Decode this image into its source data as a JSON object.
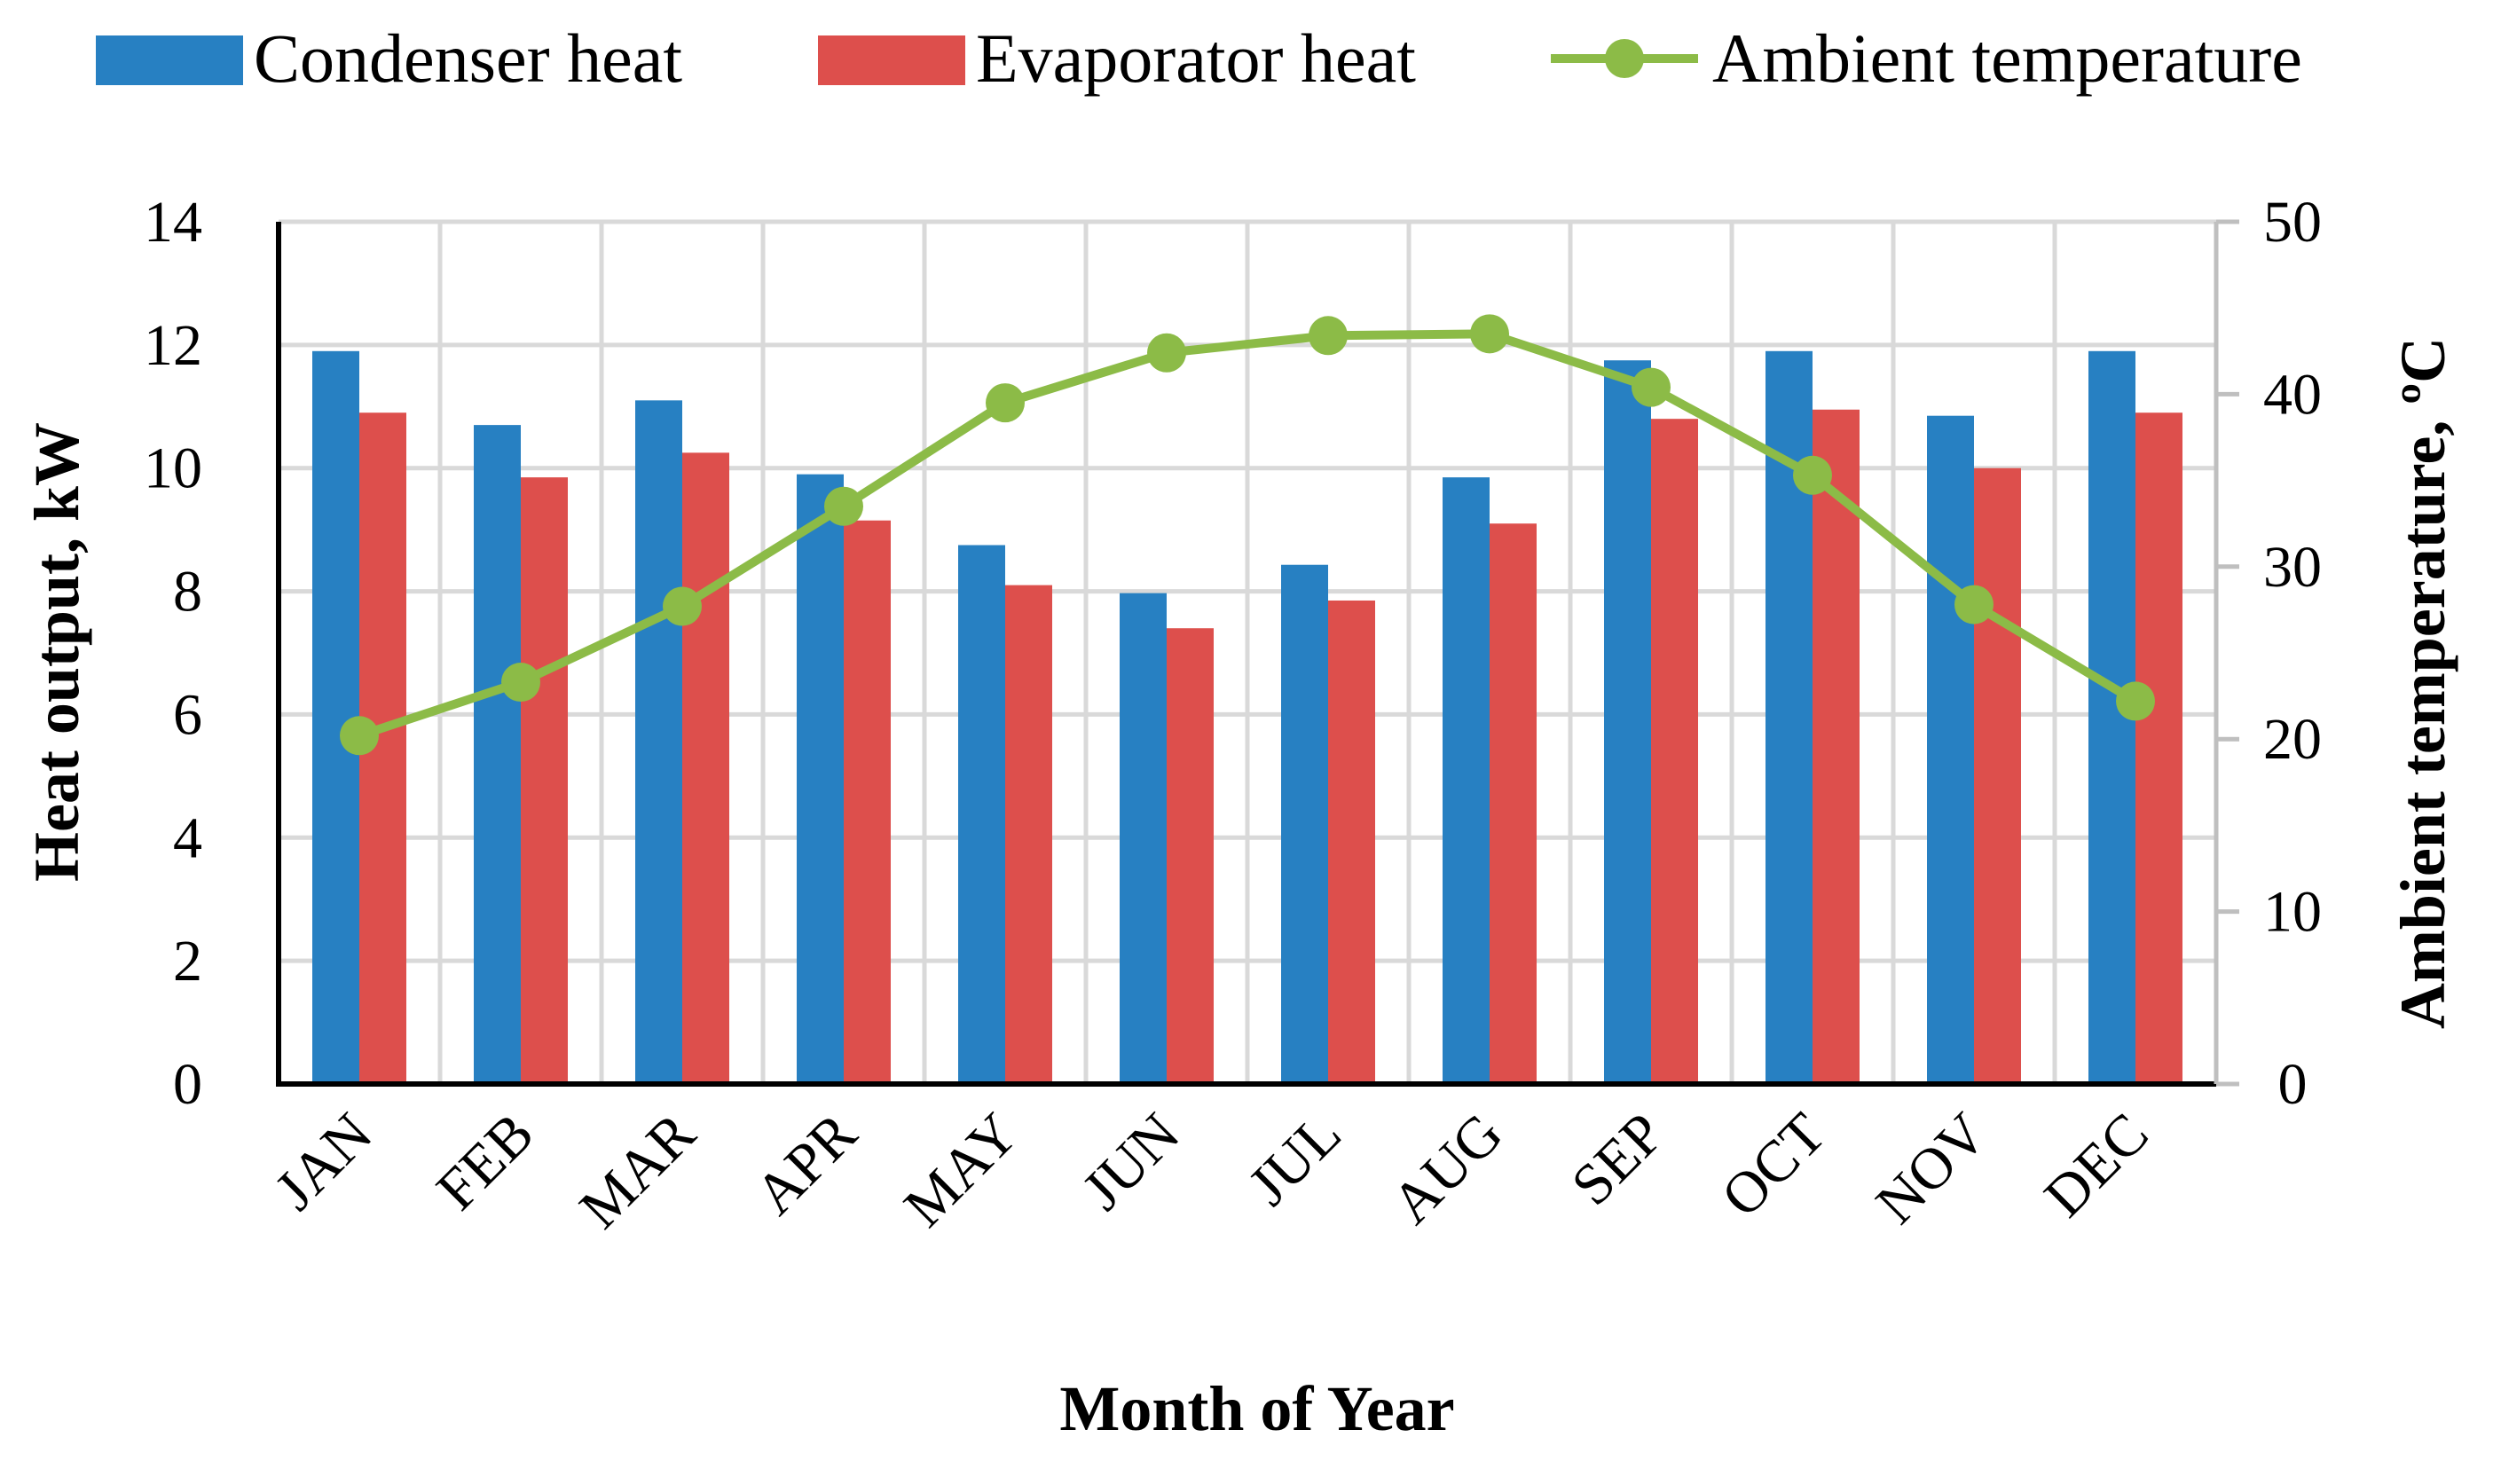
{
  "chart_data": {
    "type": "bar",
    "title": "",
    "xlabel": "Month of Year",
    "ylabel": "Heat output, kW",
    "y2label": "Ambient temperature, ºC",
    "ylim": [
      0,
      14
    ],
    "y2lim": [
      0,
      50
    ],
    "yticks": [
      "0",
      "2",
      "4",
      "6",
      "8",
      "10",
      "12",
      "14"
    ],
    "y2ticks": [
      "0",
      "10",
      "20",
      "30",
      "40",
      "50"
    ],
    "grid": true,
    "legend_position": "top",
    "categories": [
      "JAN",
      "FEB",
      "MAR",
      "APR",
      "MAY",
      "JUN",
      "JUL",
      "AUG",
      "SEP",
      "OCT",
      "NOV",
      "DEC"
    ],
    "series": [
      {
        "name": "Condenser heat",
        "type": "bar",
        "axis": "left",
        "color": "#2780C2",
        "values": [
          11.9,
          10.7,
          11.1,
          9.9,
          8.75,
          7.97,
          8.43,
          9.85,
          11.75,
          11.9,
          10.85,
          11.9
        ]
      },
      {
        "name": "Evaporator heat",
        "type": "bar",
        "axis": "left",
        "color": "#DD4F4C",
        "values": [
          10.9,
          9.85,
          10.25,
          9.15,
          8.1,
          7.4,
          7.85,
          9.1,
          10.8,
          10.95,
          10.0,
          10.9
        ]
      },
      {
        "name": "Ambient temperature",
        "type": "line",
        "axis": "right",
        "color": "#8CBB47",
        "values": [
          20.2,
          23.3,
          27.7,
          33.5,
          39.5,
          42.4,
          43.4,
          43.5,
          40.4,
          35.3,
          27.8,
          22.2
        ]
      }
    ]
  }
}
